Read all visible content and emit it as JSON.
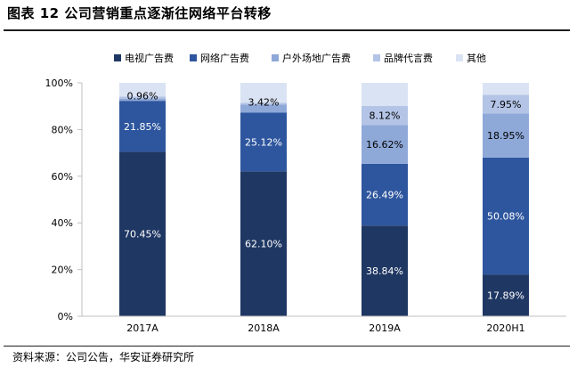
{
  "title": "图表 12 公司营销重点逐渐往网络平台转移",
  "source": "资料来源：公司公告，华安证券研究所",
  "colors": {
    "tv": "#1f3763",
    "network": "#2e569e",
    "outdoor": "#8ea8d8",
    "brand": "#b3c4e6",
    "other": "#dae3f3",
    "axis": "#bfbfbf"
  },
  "chart_data": {
    "type": "bar",
    "stacked": true,
    "categories": [
      "2017A",
      "2018A",
      "2019A",
      "2020H1"
    ],
    "series": [
      {
        "name": "电视广告费",
        "values": [
          70.45,
          62.1,
          38.84,
          17.89
        ],
        "labels": [
          "70.45%",
          "62.10%",
          "38.84%",
          "17.89%"
        ],
        "color_key": "tv",
        "label_color": "#ffffff"
      },
      {
        "name": "网络广告费",
        "values": [
          21.85,
          25.12,
          26.49,
          50.08
        ],
        "labels": [
          "21.85%",
          "25.12%",
          "26.49%",
          "50.08%"
        ],
        "color_key": "network",
        "label_color": "#ffffff"
      },
      {
        "name": "户外场地广告费",
        "values": [
          0.96,
          3.42,
          16.62,
          18.95
        ],
        "labels": [
          "0.96%",
          "3.42%",
          "16.62%",
          "18.95%"
        ],
        "color_key": "outdoor",
        "label_color": "#000000"
      },
      {
        "name": "品牌代言费",
        "values": [
          0.9,
          0.8,
          8.12,
          7.95
        ],
        "labels": [
          "",
          "",
          "8.12%",
          "7.95%"
        ],
        "color_key": "brand",
        "label_color": "#000000"
      },
      {
        "name": "其他",
        "values": [
          5.84,
          8.56,
          9.93,
          5.13
        ],
        "labels": [
          "",
          "",
          "",
          ""
        ],
        "color_key": "other",
        "label_color": "#000000"
      }
    ],
    "ylim": [
      0,
      100
    ],
    "yticks": [
      0,
      20,
      40,
      60,
      80,
      100
    ],
    "ytick_labels": [
      "0%",
      "20%",
      "40%",
      "60%",
      "80%",
      "100%"
    ],
    "legend_position": "top",
    "grid": false
  }
}
